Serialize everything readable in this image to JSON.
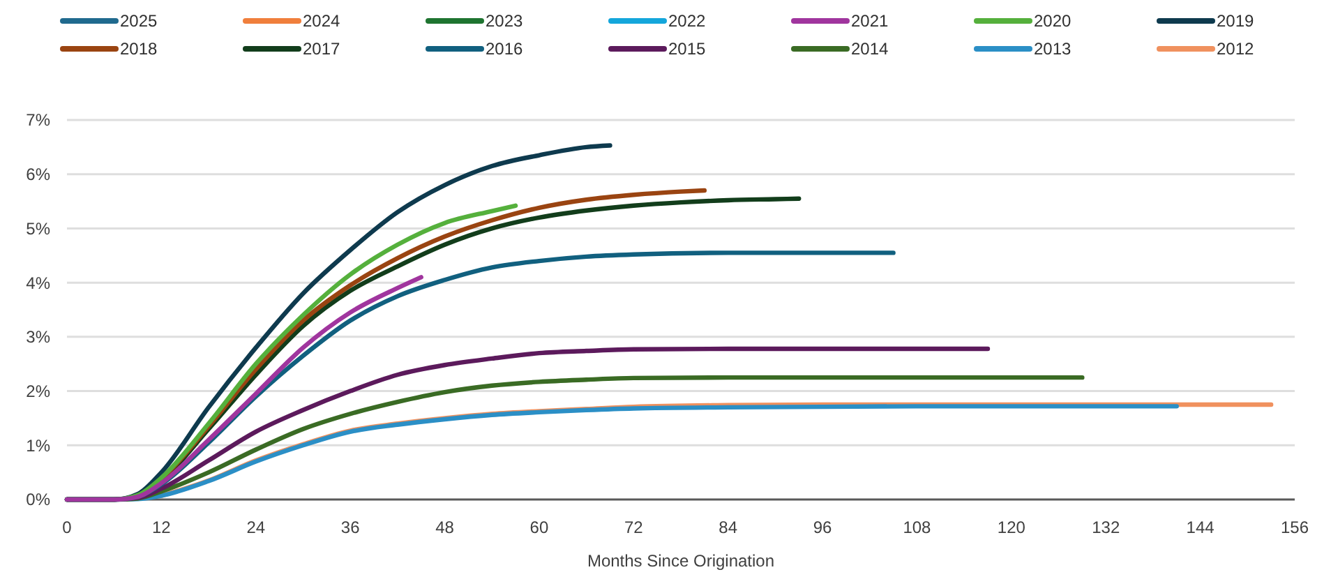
{
  "chart_data": {
    "type": "line",
    "xlabel": "Months Since Origination",
    "xlim": [
      0,
      156
    ],
    "xticks": [
      0,
      12,
      24,
      36,
      48,
      60,
      72,
      84,
      96,
      108,
      120,
      132,
      144,
      156
    ],
    "ylim": [
      0,
      7
    ],
    "yticks": [
      {
        "value": 0,
        "label": "0%"
      },
      {
        "value": 1,
        "label": "1%"
      },
      {
        "value": 2,
        "label": "2%"
      },
      {
        "value": 3,
        "label": "3%"
      },
      {
        "value": 4,
        "label": "4%"
      },
      {
        "value": 5,
        "label": "5%"
      },
      {
        "value": 6,
        "label": "6%"
      },
      {
        "value": 7,
        "label": "7%"
      }
    ],
    "grid": "y",
    "legend": "top",
    "marker": "none",
    "line_style": "solid",
    "series": [
      {
        "name": "2025",
        "color": "#206a8e"
      },
      {
        "name": "2024",
        "color": "#f07f3c"
      },
      {
        "name": "2023",
        "color": "#1e7430"
      },
      {
        "name": "2022",
        "color": "#14a6db"
      },
      {
        "name": "2021",
        "color": "#a0359e",
        "x": [
          0,
          6,
          9,
          12,
          18,
          24,
          30,
          36,
          42,
          45
        ],
        "values": [
          0,
          0,
          0.05,
          0.3,
          1.1,
          1.95,
          2.8,
          3.45,
          3.9,
          4.1
        ]
      },
      {
        "name": "2020",
        "color": "#55b03c",
        "x": [
          0,
          6,
          9,
          12,
          18,
          24,
          30,
          36,
          42,
          48,
          54,
          57
        ],
        "values": [
          0,
          0,
          0.08,
          0.4,
          1.4,
          2.5,
          3.4,
          4.15,
          4.7,
          5.1,
          5.32,
          5.42
        ]
      },
      {
        "name": "2019",
        "color": "#0e3a4e",
        "x": [
          0,
          6,
          9,
          12,
          18,
          24,
          30,
          36,
          42,
          48,
          54,
          60,
          66,
          69
        ],
        "values": [
          0,
          0,
          0.1,
          0.5,
          1.7,
          2.8,
          3.8,
          4.6,
          5.3,
          5.8,
          6.15,
          6.35,
          6.5,
          6.53
        ]
      },
      {
        "name": "2018",
        "color": "#9a4411",
        "x": [
          9,
          12,
          18,
          24,
          30,
          36,
          42,
          48,
          54,
          60,
          66,
          72,
          78,
          81
        ],
        "values": [
          0.07,
          0.38,
          1.35,
          2.4,
          3.3,
          3.95,
          4.45,
          4.85,
          5.15,
          5.38,
          5.53,
          5.62,
          5.68,
          5.7
        ]
      },
      {
        "name": "2017",
        "color": "#123d1b",
        "x": [
          0,
          6,
          9,
          12,
          18,
          24,
          30,
          36,
          42,
          48,
          54,
          60,
          66,
          72,
          78,
          84,
          90,
          93
        ],
        "values": [
          0,
          0,
          0.07,
          0.35,
          1.3,
          2.3,
          3.2,
          3.85,
          4.3,
          4.7,
          5.0,
          5.2,
          5.33,
          5.42,
          5.48,
          5.52,
          5.54,
          5.55
        ]
      },
      {
        "name": "2016",
        "color": "#11607f",
        "x": [
          0,
          6,
          9,
          12,
          18,
          24,
          30,
          36,
          42,
          48,
          54,
          60,
          66,
          72,
          84,
          96,
          105
        ],
        "values": [
          0,
          0,
          0.05,
          0.28,
          1.05,
          1.9,
          2.65,
          3.3,
          3.75,
          4.05,
          4.28,
          4.4,
          4.48,
          4.52,
          4.55,
          4.55,
          4.55
        ]
      },
      {
        "name": "2015",
        "color": "#5c1a5c",
        "x": [
          0,
          6,
          9,
          12,
          18,
          24,
          30,
          36,
          42,
          48,
          54,
          60,
          66,
          72,
          84,
          96,
          108,
          117
        ],
        "values": [
          0,
          0,
          0.03,
          0.2,
          0.72,
          1.25,
          1.65,
          2.0,
          2.3,
          2.48,
          2.6,
          2.7,
          2.74,
          2.77,
          2.78,
          2.78,
          2.78,
          2.78
        ]
      },
      {
        "name": "2014",
        "color": "#3a6b24",
        "x": [
          0,
          6,
          9,
          12,
          18,
          24,
          30,
          36,
          42,
          48,
          54,
          60,
          66,
          72,
          84,
          96,
          108,
          120,
          129
        ],
        "values": [
          0,
          0,
          0.02,
          0.15,
          0.5,
          0.92,
          1.3,
          1.58,
          1.8,
          1.98,
          2.1,
          2.17,
          2.21,
          2.24,
          2.25,
          2.25,
          2.25,
          2.25,
          2.25
        ]
      },
      {
        "name": "2013",
        "color": "#2b8fc6",
        "x": [
          0,
          6,
          9,
          12,
          18,
          24,
          30,
          36,
          42,
          48,
          54,
          60,
          66,
          72,
          84,
          96,
          108,
          120,
          132,
          141
        ],
        "values": [
          0,
          0,
          0.01,
          0.07,
          0.34,
          0.7,
          1.0,
          1.25,
          1.38,
          1.48,
          1.56,
          1.61,
          1.65,
          1.68,
          1.7,
          1.71,
          1.72,
          1.72,
          1.72,
          1.72
        ]
      },
      {
        "name": "2012",
        "color": "#f0915e",
        "x": [
          12,
          18,
          24,
          30,
          36,
          42,
          48,
          54,
          60,
          66,
          72,
          84,
          96,
          108,
          120,
          132,
          144,
          153
        ],
        "values": [
          0.07,
          0.35,
          0.72,
          1.02,
          1.27,
          1.4,
          1.5,
          1.58,
          1.63,
          1.67,
          1.71,
          1.74,
          1.75,
          1.75,
          1.75,
          1.75,
          1.75,
          1.75
        ]
      }
    ]
  }
}
